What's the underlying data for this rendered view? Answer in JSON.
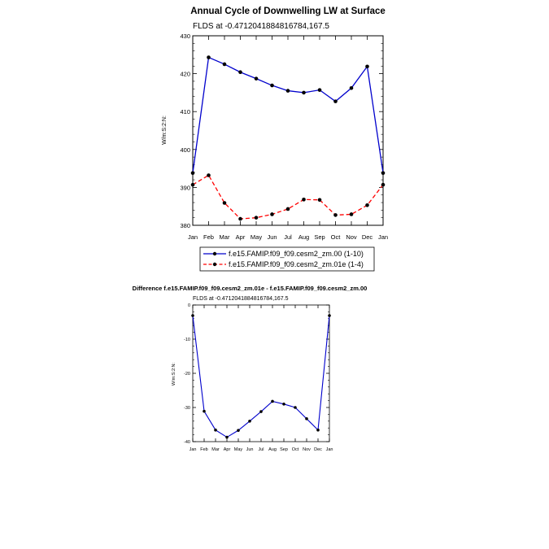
{
  "chart_data": [
    {
      "type": "line",
      "title": "Annual Cycle of Downwelling LW at Surface",
      "subtitle": "FLDS at -0.4712041884816784,167.5",
      "ylabel": "W/m:S:2:N:",
      "xlabel": "",
      "categories": [
        "Jan",
        "Feb",
        "Mar",
        "Apr",
        "May",
        "Jun",
        "Jul",
        "Aug",
        "Sep",
        "Oct",
        "Nov",
        "Dec",
        "Jan"
      ],
      "ylim": [
        380,
        430
      ],
      "yticks": [
        "380",
        "390",
        "400",
        "410",
        "420",
        "430"
      ],
      "grid": false,
      "legend_position": "bottom",
      "series": [
        {
          "name": "f.e15.FAMIP.f09_f09.cesm2_zm.00 (1-10)",
          "color": "#0000cc",
          "dash": "solid",
          "values": [
            393.8,
            424.3,
            422.5,
            420.4,
            418.7,
            416.9,
            415.5,
            415.0,
            415.7,
            412.7,
            416.2,
            421.9,
            393.8
          ]
        },
        {
          "name": "f.e15.FAMIP.f09_f09.cesm2_zm.01e (1-4)",
          "color": "#ff0000",
          "dash": "dashed",
          "values": [
            390.7,
            393.2,
            385.9,
            381.7,
            382.0,
            382.9,
            384.3,
            386.8,
            386.7,
            382.7,
            382.9,
            385.3,
            390.7
          ]
        }
      ]
    },
    {
      "type": "line",
      "title": "Difference f.e15.FAMIP.f09_f09.cesm2_zm.01e - f.e15.FAMIP.f09_f09.cesm2_zm.00",
      "subtitle": "FLDS at -0.4712041884816784,167.5",
      "ylabel": "W/m:S:2:N:",
      "xlabel": "",
      "categories": [
        "Jan",
        "Feb",
        "Mar",
        "Apr",
        "May",
        "Jun",
        "Jul",
        "Aug",
        "Sep",
        "Oct",
        "Nov",
        "Dec",
        "Jan"
      ],
      "ylim": [
        -40,
        0
      ],
      "yticks": [
        "-40",
        "-30",
        "-20",
        "-10",
        "0"
      ],
      "grid": false,
      "series": [
        {
          "color": "#0000cc",
          "dash": "solid",
          "values": [
            -3.1,
            -31.1,
            -36.6,
            -38.7,
            -36.7,
            -34.0,
            -31.2,
            -28.2,
            -29.0,
            -30.0,
            -33.3,
            -36.6,
            -3.1
          ]
        }
      ]
    }
  ]
}
